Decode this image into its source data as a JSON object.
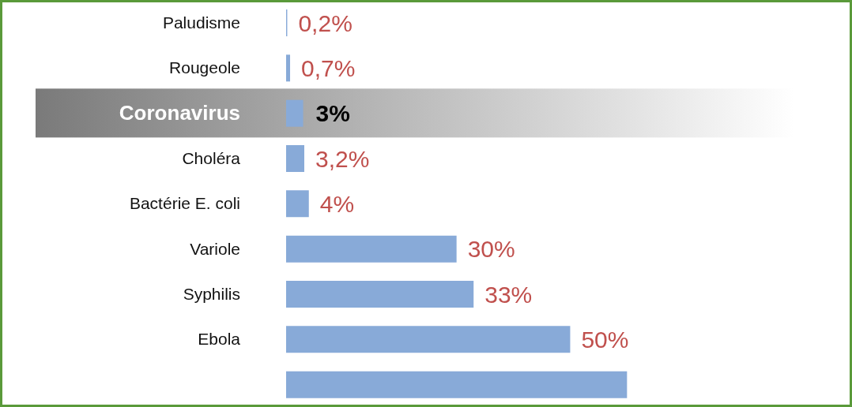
{
  "chart_data": {
    "type": "bar",
    "orientation": "horizontal",
    "tick_labels": "y",
    "categories": [
      "Paludisme",
      "Rougeole",
      "Coronavirus",
      "Choléra",
      "Bactérie E. coli",
      "Variole",
      "Syphilis",
      "Ebola",
      null
    ],
    "values": [
      0.2,
      0.7,
      3,
      3.2,
      4,
      30,
      33,
      50,
      60
    ],
    "value_labels": [
      "0,2%",
      "0,7%",
      "3%",
      "3,2%",
      "4%",
      "30%",
      "33%",
      "50%",
      null
    ],
    "color": "#88aad8",
    "bands": [
      {
        "axis": "y",
        "from": "Coronavirus",
        "to": "Coronavirus",
        "color": "#7a7a7a"
      }
    ]
  }
}
